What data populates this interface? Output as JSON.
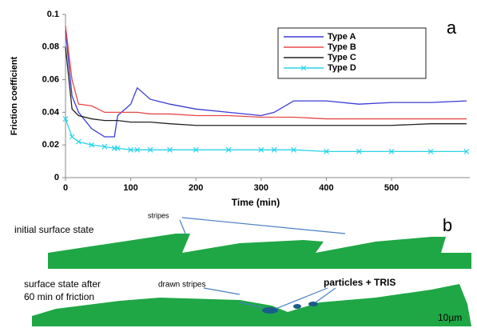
{
  "chart_data": {
    "type": "line",
    "panel_label": "a",
    "xlabel": "Time (min)",
    "ylabel": "Friction coefficient",
    "x": [
      0,
      10,
      20,
      40,
      60,
      75,
      80,
      100,
      110,
      130,
      160,
      200,
      250,
      300,
      320,
      350,
      400,
      450,
      500,
      560,
      615
    ],
    "xlim": [
      0,
      620
    ],
    "xticks": [
      0,
      100,
      200,
      300,
      400,
      500
    ],
    "ylim": [
      0,
      0.1
    ],
    "yticks": [
      0,
      0.02,
      0.04,
      0.06,
      0.08,
      0.1
    ],
    "series": [
      {
        "name": "Type A",
        "color": "#3b3bd6",
        "values": [
          0.09,
          0.05,
          0.04,
          0.03,
          0.025,
          0.025,
          0.038,
          0.045,
          0.055,
          0.048,
          0.045,
          0.042,
          0.04,
          0.038,
          0.04,
          0.047,
          0.047,
          0.045,
          0.046,
          0.046,
          0.047
        ]
      },
      {
        "name": "Type B",
        "color": "#e84848",
        "values": [
          0.093,
          0.06,
          0.045,
          0.044,
          0.04,
          0.04,
          0.04,
          0.04,
          0.04,
          0.039,
          0.039,
          0.038,
          0.038,
          0.037,
          0.037,
          0.037,
          0.036,
          0.036,
          0.036,
          0.036,
          0.036
        ]
      },
      {
        "name": "Type C",
        "color": "#222222",
        "values": [
          0.08,
          0.042,
          0.038,
          0.036,
          0.035,
          0.035,
          0.035,
          0.034,
          0.034,
          0.034,
          0.033,
          0.032,
          0.032,
          0.032,
          0.032,
          0.032,
          0.032,
          0.032,
          0.032,
          0.033,
          0.033
        ]
      },
      {
        "name": "Type D",
        "color": "#2ad4e8",
        "marker": "x",
        "values": [
          0.036,
          0.025,
          0.022,
          0.02,
          0.019,
          0.018,
          0.018,
          0.017,
          0.017,
          0.017,
          0.017,
          0.017,
          0.017,
          0.017,
          0.017,
          0.017,
          0.016,
          0.016,
          0.016,
          0.016,
          0.016
        ]
      }
    ]
  },
  "diagram": {
    "panel_label": "b",
    "initial": "initial surface state",
    "stripes": "stripes",
    "after_line1": "surface state after",
    "after_line2": "60 min of friction",
    "drawn": "drawn stripes",
    "particles": "particles + TRIS",
    "scale": "10µm"
  }
}
